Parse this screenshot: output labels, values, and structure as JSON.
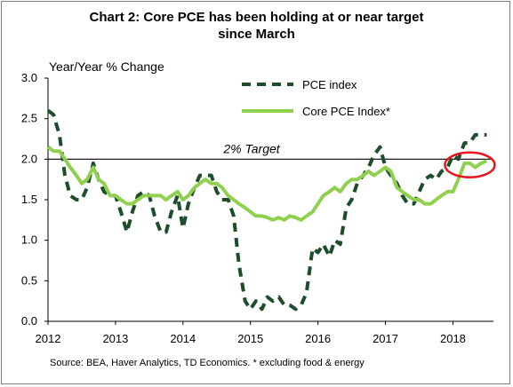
{
  "title_line1": "Chart 2: Core PCE has been holding at or near target",
  "title_line2": "since March",
  "source": "Source: BEA, Haver Analytics, TD Economics. * excluding food & energy",
  "colors": {
    "pce": "#1e4d2b",
    "core": "#8fd14f",
    "highlight": "#e8141c",
    "target": "#000000"
  },
  "chart_data": {
    "type": "line",
    "ylabel": "Year/Year % Change",
    "ylim": [
      0,
      3
    ],
    "yticks": [
      "0.0",
      "0.5",
      "1.0",
      "1.5",
      "2.0",
      "2.5",
      "3.0"
    ],
    "xlim": [
      2012,
      2018.6
    ],
    "xticks": [
      "2012",
      "2013",
      "2014",
      "2015",
      "2016",
      "2017",
      "2018"
    ],
    "grid": false,
    "legend": "top-center",
    "target": {
      "value": 2.0,
      "label": "2% Target"
    },
    "highlight": {
      "shape": "ellipse",
      "x_center": 2018.25,
      "y_center": 1.93
    },
    "series": [
      {
        "name": "PCE index",
        "style": "dashed",
        "x": [
          2012.0,
          2012.08,
          2012.17,
          2012.25,
          2012.33,
          2012.42,
          2012.5,
          2012.58,
          2012.67,
          2012.75,
          2012.83,
          2012.92,
          2013.0,
          2013.08,
          2013.17,
          2013.25,
          2013.33,
          2013.42,
          2013.5,
          2013.58,
          2013.67,
          2013.75,
          2013.83,
          2013.92,
          2014.0,
          2014.08,
          2014.17,
          2014.25,
          2014.33,
          2014.42,
          2014.5,
          2014.58,
          2014.67,
          2014.75,
          2014.83,
          2014.92,
          2015.0,
          2015.08,
          2015.17,
          2015.25,
          2015.33,
          2015.42,
          2015.5,
          2015.58,
          2015.67,
          2015.75,
          2015.83,
          2015.92,
          2016.0,
          2016.08,
          2016.17,
          2016.25,
          2016.33,
          2016.42,
          2016.5,
          2016.58,
          2016.67,
          2016.75,
          2016.83,
          2016.92,
          2017.0,
          2017.08,
          2017.17,
          2017.25,
          2017.33,
          2017.42,
          2017.5,
          2017.58,
          2017.67,
          2017.75,
          2017.83,
          2017.92,
          2018.0,
          2018.08,
          2018.17,
          2018.25,
          2018.33,
          2018.42,
          2018.5
        ],
        "values": [
          2.6,
          2.55,
          2.3,
          1.8,
          1.55,
          1.5,
          1.5,
          1.65,
          1.95,
          1.75,
          1.6,
          1.55,
          1.55,
          1.35,
          1.1,
          1.35,
          1.55,
          1.6,
          1.55,
          1.3,
          1.1,
          1.1,
          1.35,
          1.55,
          1.15,
          1.45,
          1.65,
          1.8,
          1.8,
          1.8,
          1.6,
          1.5,
          1.5,
          1.3,
          0.7,
          0.25,
          0.15,
          0.25,
          0.15,
          0.3,
          0.25,
          0.3,
          0.2,
          0.2,
          0.15,
          0.2,
          0.35,
          0.9,
          0.85,
          0.95,
          0.8,
          1.0,
          0.95,
          1.4,
          1.5,
          1.7,
          1.8,
          1.9,
          2.05,
          2.15,
          1.9,
          1.8,
          1.7,
          1.55,
          1.45,
          1.45,
          1.6,
          1.75,
          1.8,
          1.75,
          1.85,
          1.9,
          2.05,
          2.0,
          2.2,
          2.2,
          2.3,
          2.3,
          2.3
        ]
      },
      {
        "name": "Core PCE Index*",
        "style": "solid",
        "x": [
          2012.0,
          2012.08,
          2012.17,
          2012.25,
          2012.33,
          2012.42,
          2012.5,
          2012.58,
          2012.67,
          2012.75,
          2012.83,
          2012.92,
          2013.0,
          2013.08,
          2013.17,
          2013.25,
          2013.33,
          2013.42,
          2013.5,
          2013.58,
          2013.67,
          2013.75,
          2013.83,
          2013.92,
          2014.0,
          2014.08,
          2014.17,
          2014.25,
          2014.33,
          2014.42,
          2014.5,
          2014.58,
          2014.67,
          2014.75,
          2014.83,
          2014.92,
          2015.0,
          2015.08,
          2015.17,
          2015.25,
          2015.33,
          2015.42,
          2015.5,
          2015.58,
          2015.67,
          2015.75,
          2015.83,
          2015.92,
          2016.0,
          2016.08,
          2016.17,
          2016.25,
          2016.33,
          2016.42,
          2016.5,
          2016.58,
          2016.67,
          2016.75,
          2016.83,
          2016.92,
          2017.0,
          2017.08,
          2017.17,
          2017.25,
          2017.33,
          2017.42,
          2017.5,
          2017.58,
          2017.67,
          2017.75,
          2017.83,
          2017.92,
          2018.0,
          2018.08,
          2018.17,
          2018.25,
          2018.33,
          2018.42,
          2018.5
        ],
        "values": [
          2.15,
          2.1,
          2.1,
          2.0,
          1.9,
          1.8,
          1.7,
          1.75,
          1.9,
          1.75,
          1.7,
          1.55,
          1.55,
          1.5,
          1.45,
          1.45,
          1.5,
          1.55,
          1.55,
          1.55,
          1.55,
          1.5,
          1.55,
          1.6,
          1.5,
          1.55,
          1.65,
          1.7,
          1.75,
          1.7,
          1.7,
          1.65,
          1.55,
          1.5,
          1.45,
          1.4,
          1.35,
          1.3,
          1.3,
          1.28,
          1.25,
          1.28,
          1.25,
          1.3,
          1.28,
          1.25,
          1.3,
          1.35,
          1.45,
          1.55,
          1.6,
          1.65,
          1.6,
          1.7,
          1.75,
          1.75,
          1.8,
          1.85,
          1.8,
          1.85,
          1.9,
          1.85,
          1.65,
          1.6,
          1.55,
          1.5,
          1.5,
          1.45,
          1.45,
          1.5,
          1.55,
          1.6,
          1.6,
          1.75,
          1.95,
          1.95,
          1.9,
          1.95,
          1.98
        ]
      }
    ]
  }
}
